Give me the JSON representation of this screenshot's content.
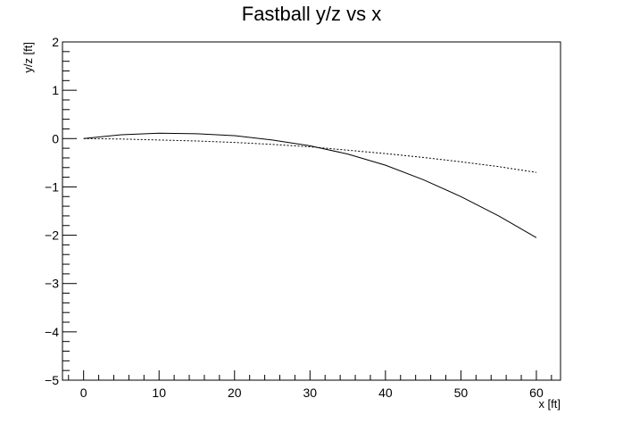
{
  "chart_data": {
    "type": "line",
    "title": "Fastball y/z vs x",
    "xlabel": "x [ft]",
    "ylabel": "y/z [ft]",
    "xlim": [
      -2.8,
      63.2
    ],
    "ylim": [
      -5,
      2
    ],
    "x_ticks": [
      0,
      10,
      20,
      30,
      40,
      50,
      60
    ],
    "y_ticks": [
      -5,
      -4,
      -3,
      -2,
      -1,
      0,
      1,
      2
    ],
    "x_tick_labels": [
      "0",
      "10",
      "20",
      "30",
      "40",
      "50",
      "60"
    ],
    "y_tick_labels": [
      "−5",
      "−4",
      "−3",
      "−2",
      "−1",
      "0",
      "1",
      "2"
    ],
    "grid": false,
    "legend": "none",
    "series": [
      {
        "style": "solid",
        "color": "#000000",
        "x": [
          0,
          5,
          10,
          15,
          20,
          25,
          30,
          35,
          40,
          45,
          50,
          55,
          60
        ],
        "y": [
          0.0,
          0.08,
          0.11,
          0.1,
          0.06,
          -0.03,
          -0.15,
          -0.32,
          -0.55,
          -0.85,
          -1.2,
          -1.6,
          -2.05
        ]
      },
      {
        "style": "dotted",
        "color": "#000000",
        "x": [
          0,
          5,
          10,
          15,
          20,
          25,
          30,
          35,
          40,
          45,
          50,
          55,
          60
        ],
        "y": [
          0.0,
          -0.01,
          -0.03,
          -0.05,
          -0.08,
          -0.12,
          -0.17,
          -0.24,
          -0.31,
          -0.39,
          -0.48,
          -0.58,
          -0.7
        ]
      }
    ]
  }
}
